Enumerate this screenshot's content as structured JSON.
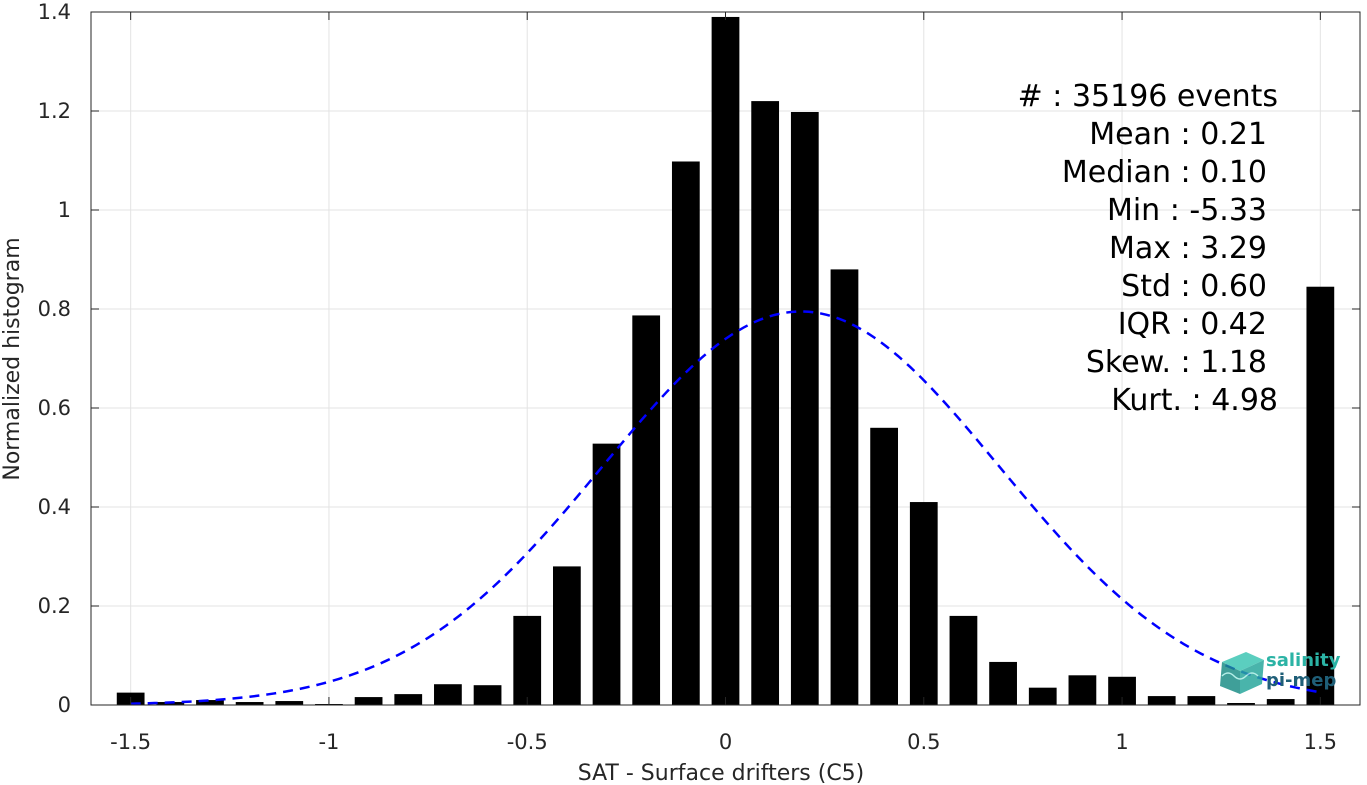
{
  "chart_data": {
    "type": "bar",
    "xlabel": "SAT - Surface drifters (C5)",
    "ylabel": "Normalized histogram",
    "xlim": [
      -1.6,
      1.6
    ],
    "ylim": [
      0,
      1.4
    ],
    "grid": true,
    "x_ticks": [
      "-1.5",
      "-1",
      "-0.5",
      "0",
      "0.5",
      "1",
      "1.5"
    ],
    "x_tick_values": [
      -1.5,
      -1,
      -0.5,
      0,
      0.5,
      1,
      1.5
    ],
    "y_ticks": [
      "0",
      "0.2",
      "0.4",
      "0.6",
      "0.8",
      "1",
      "1.2",
      "1.4"
    ],
    "y_tick_values": [
      0,
      0.2,
      0.4,
      0.6,
      0.8,
      1,
      1.2,
      1.4
    ],
    "bin_width": 0.1,
    "bars_color": "#000000",
    "bars": {
      "x": [
        -1.5,
        -1.4,
        -1.3,
        -1.2,
        -1.1,
        -1.0,
        -0.9,
        -0.8,
        -0.7,
        -0.6,
        -0.5,
        -0.4,
        -0.3,
        -0.2,
        -0.1,
        0.0,
        0.1,
        0.2,
        0.3,
        0.4,
        0.5,
        0.6,
        0.7,
        0.8,
        0.9,
        1.0,
        1.1,
        1.2,
        1.3,
        1.4,
        1.5
      ],
      "values": [
        0.025,
        0.006,
        0.01,
        0.006,
        0.008,
        0.002,
        0.016,
        0.022,
        0.042,
        0.04,
        0.18,
        0.28,
        0.528,
        0.787,
        1.098,
        1.39,
        1.22,
        1.198,
        0.88,
        0.56,
        0.41,
        0.18,
        0.087,
        0.035,
        0.06,
        0.057,
        0.018,
        0.018,
        0.004,
        0.012,
        0.845
      ]
    },
    "fit_curve": {
      "style": "dashed",
      "color": "#0000ff",
      "mean": 0.19,
      "std": 0.5,
      "peak": 0.795,
      "x_range": [
        -1.5,
        1.5
      ]
    },
    "stats": [
      {
        "label": "#  : 35196 events"
      },
      {
        "label": "Mean : 0.21"
      },
      {
        "label": "Median : 0.10"
      },
      {
        "label": "Min : -5.33"
      },
      {
        "label": "Max : 3.29"
      },
      {
        "label": "Std : 0.60"
      },
      {
        "label": "IQR : 0.42"
      },
      {
        "label": "Skew. : 1.18"
      },
      {
        "label": "Kurt. : 4.98"
      }
    ]
  },
  "logo": {
    "line1": "salinity",
    "line2": "pi-mep",
    "color_primary": "#2bb3a5",
    "color_secondary": "#1f5f78"
  }
}
